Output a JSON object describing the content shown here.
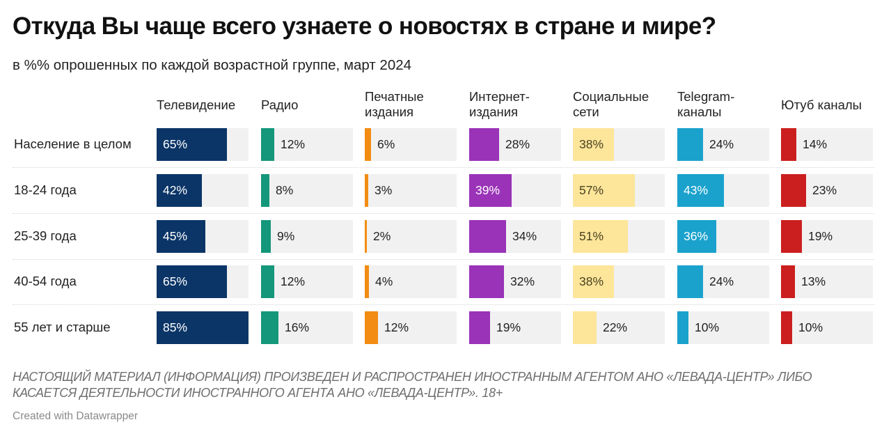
{
  "chart_data": {
    "type": "bar",
    "subtype": "small-multiples-horizontal-bar",
    "title": "Откуда Вы чаще всего узнаете о новостях в стране и мире?",
    "subtitle": "в %% опрошенных по каждой возрастной группе, март 2024",
    "xlabel": "",
    "ylabel": "",
    "xlim": [
      0,
      85
    ],
    "unit": "%",
    "categories": [
      "Население в целом",
      "18-24 года",
      "25-39 года",
      "40-54 года",
      "55 лет и старше"
    ],
    "series": [
      {
        "name": "Телевидение",
        "header": "Телевидение",
        "color": "#0b3567",
        "label_inside_color": "#ffffff",
        "values": [
          65,
          42,
          45,
          65,
          85
        ]
      },
      {
        "name": "Радио",
        "header": "Радио",
        "color": "#14977a",
        "label_inside_color": "#ffffff",
        "values": [
          12,
          8,
          9,
          12,
          16
        ]
      },
      {
        "name": "Печатные издания",
        "header": "Печатные\nиздания",
        "color": "#f28c12",
        "label_inside_color": "#ffffff",
        "values": [
          6,
          3,
          2,
          4,
          12
        ]
      },
      {
        "name": "Интернет-издания",
        "header": "Интернет-\nиздания",
        "color": "#9a33b8",
        "label_inside_color": "#ffffff",
        "values": [
          28,
          39,
          34,
          32,
          19
        ]
      },
      {
        "name": "Социальные сети",
        "header": "Социальные\nсети",
        "color": "#fde59a",
        "label_inside_color": "#4a4320",
        "values": [
          38,
          57,
          51,
          38,
          22
        ]
      },
      {
        "name": "Telegram-каналы",
        "header": "Telegram-\nканалы",
        "color": "#1aa2cc",
        "label_inside_color": "#ffffff",
        "values": [
          24,
          43,
          36,
          24,
          10
        ]
      },
      {
        "name": "Ютуб каналы",
        "header": "Ютуб каналы",
        "color": "#cb1f1f",
        "label_inside_color": "#ffffff",
        "values": [
          14,
          23,
          19,
          13,
          10
        ]
      }
    ],
    "label_inside_threshold": 35,
    "value_format": "{v}%",
    "legend": "none",
    "grid": false
  },
  "footer": {
    "notes": "НАСТОЯЩИЙ МАТЕРИАЛ (ИНФОРМАЦИЯ) ПРОИЗВЕДЕН И РАСПРОСТРАНЕН ИНОСТРАННЫМ АГЕНТОМ АНО «ЛЕВАДА-ЦЕНТР» ЛИБО КАСАЕТСЯ ДЕЯТЕЛЬНОСТИ ИНОСТРАННОГО АГЕНТА АНО «ЛЕВАДА-ЦЕНТР». 18+",
    "credit": "Created with Datawrapper"
  }
}
